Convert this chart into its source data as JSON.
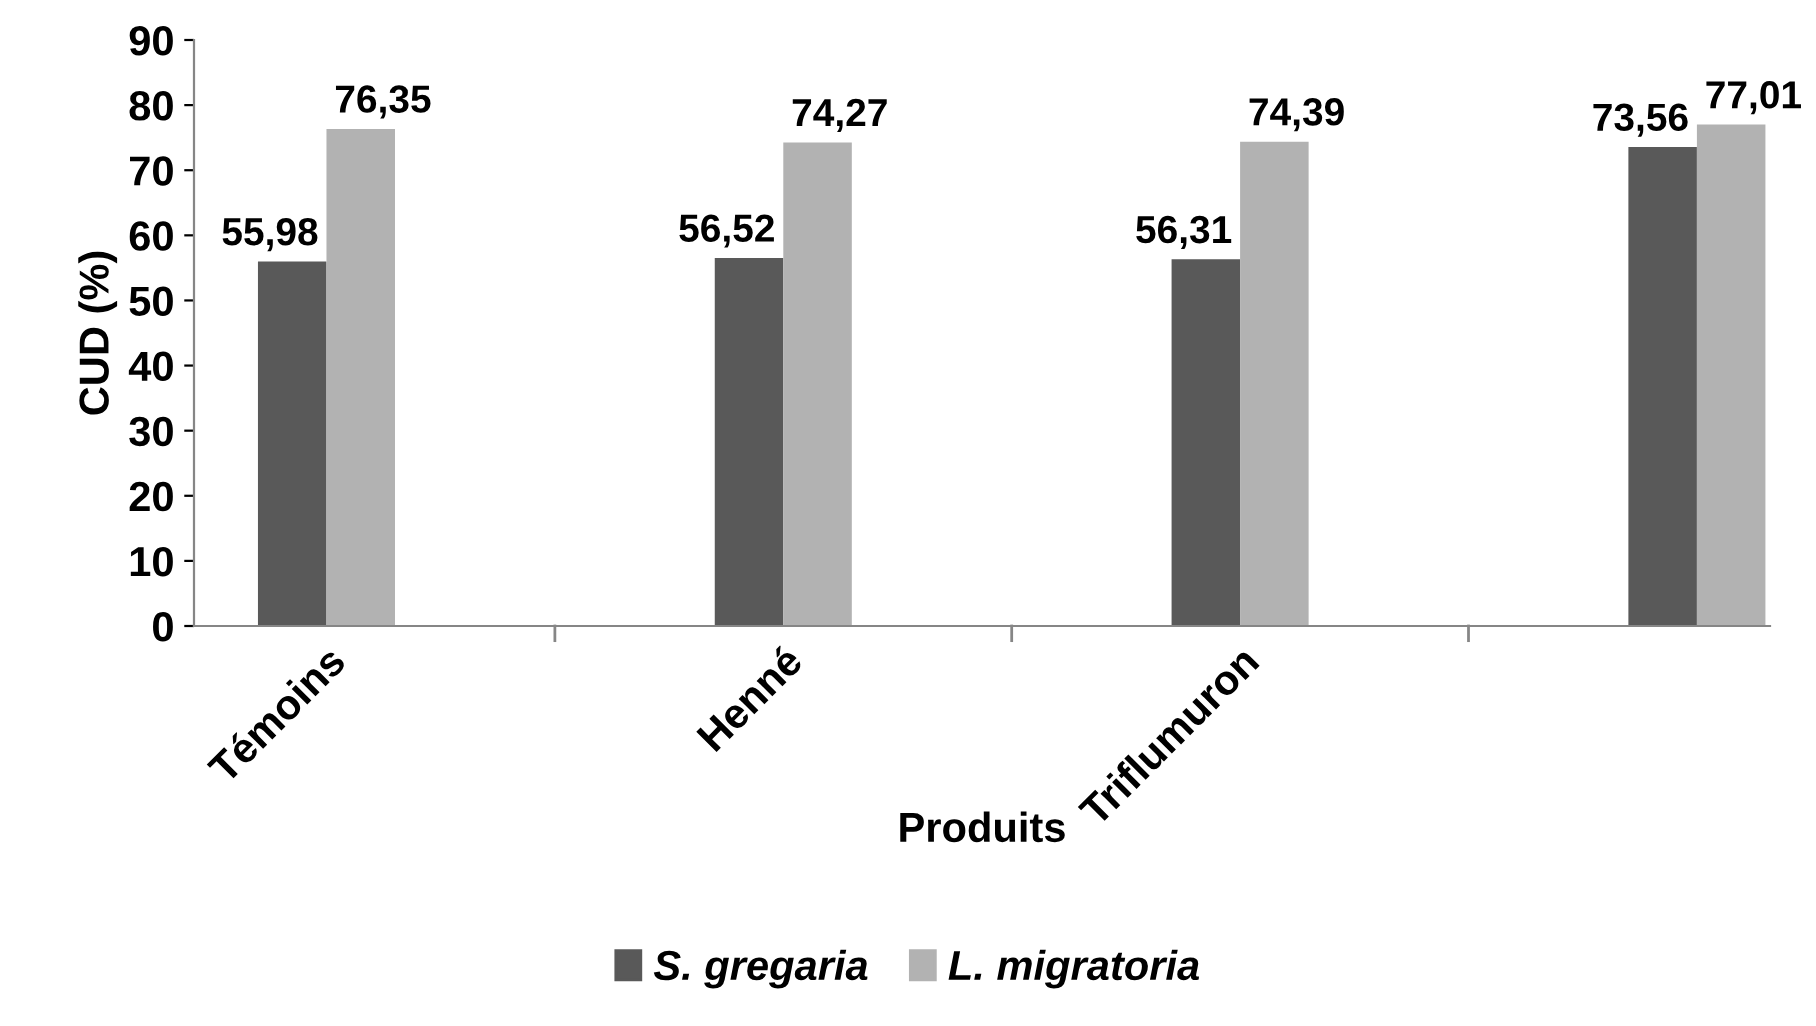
{
  "chart_data": {
    "type": "bar",
    "xlabel": "Produits",
    "ylabel": "CUD (%)",
    "categories": [
      "Témoins",
      "Henné",
      "Triflumuron",
      null
    ],
    "series": [
      {
        "name": "S. gregaria",
        "color": "#595959",
        "values": [
          55.98,
          56.52,
          56.31,
          73.56
        ],
        "value_labels": [
          "55,98",
          "56,52",
          "56,31",
          "73,56"
        ]
      },
      {
        "name": "L. migratoria",
        "color": "#b2b2b2",
        "values": [
          76.35,
          74.27,
          74.39,
          77.01
        ],
        "value_labels": [
          "76,35",
          "74,27",
          "74,39",
          "77,01"
        ]
      }
    ],
    "ylim": [
      0,
      90
    ],
    "yticks": [
      0,
      10,
      20,
      30,
      40,
      50,
      60,
      70,
      80,
      90
    ],
    "grid": false,
    "legend": "bottom"
  }
}
